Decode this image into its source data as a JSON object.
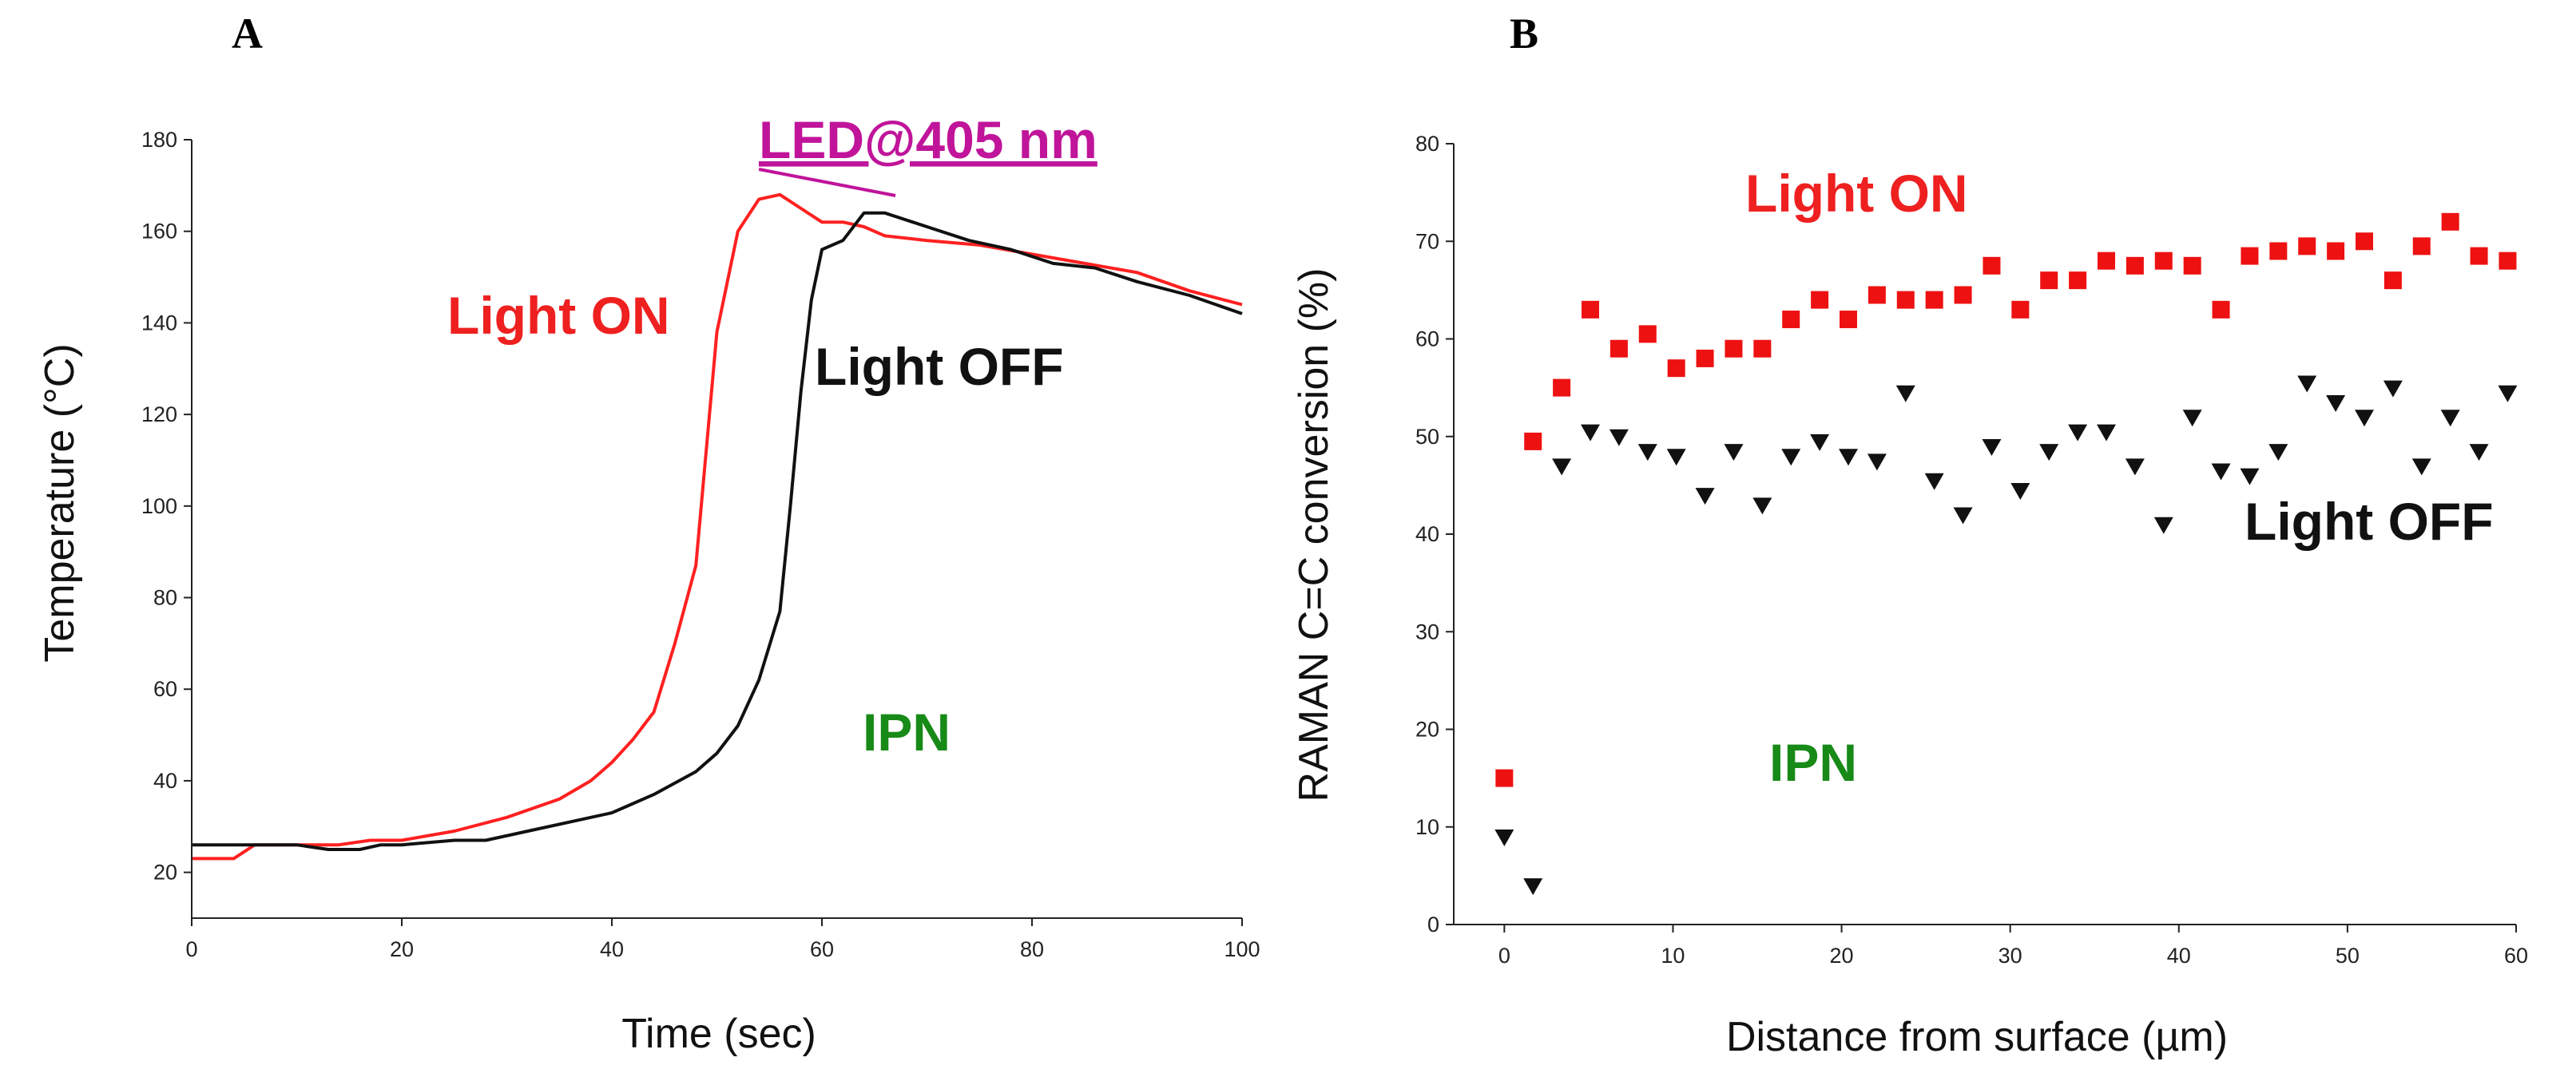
{
  "chart_data": [
    {
      "panel": "A",
      "type": "line",
      "xlabel": "Time (sec)",
      "ylabel": "Temperature (°C)",
      "xlim": [
        0,
        100
      ],
      "ylim": [
        10,
        180
      ],
      "xticks": [
        0,
        20,
        40,
        60,
        80,
        100
      ],
      "yticks": [
        20,
        40,
        60,
        80,
        100,
        120,
        140,
        160,
        180
      ],
      "grid": false,
      "series": [
        {
          "name": "Light ON",
          "color": "#ff2020",
          "x": [
            0,
            4,
            6,
            10,
            14,
            17,
            20,
            25,
            30,
            35,
            38,
            40,
            42,
            44,
            46,
            48,
            50,
            52,
            54,
            56,
            58,
            60,
            62,
            64,
            66,
            70,
            75,
            80,
            85,
            90,
            95,
            100
          ],
          "y": [
            23,
            23,
            26,
            26,
            26,
            27,
            27,
            29,
            32,
            36,
            40,
            44,
            49,
            55,
            70,
            87,
            138,
            160,
            167,
            168,
            165,
            162,
            162,
            161,
            159,
            158,
            157,
            155,
            153,
            151,
            147,
            144
          ]
        },
        {
          "name": "Light OFF",
          "color": "#111111",
          "x": [
            0,
            5,
            10,
            13,
            16,
            18,
            20,
            25,
            28,
            32,
            36,
            40,
            44,
            48,
            50,
            52,
            54,
            56,
            57,
            58,
            59,
            60,
            62,
            64,
            66,
            70,
            74,
            78,
            82,
            86,
            90,
            95,
            100
          ],
          "y": [
            26,
            26,
            26,
            25,
            25,
            26,
            26,
            27,
            27,
            29,
            31,
            33,
            37,
            42,
            46,
            52,
            62,
            77,
            100,
            125,
            145,
            156,
            158,
            164,
            164,
            161,
            158,
            156,
            153,
            152,
            149,
            146,
            142
          ]
        }
      ],
      "annotations": [
        "Light ON",
        "Light OFF",
        "LED@405 nm",
        "IPN"
      ],
      "led_bar_x": [
        54,
        67
      ]
    },
    {
      "panel": "B",
      "type": "scatter",
      "xlabel": "Distance from surface (µm)",
      "ylabel": "RAMAN C=C conversion (%)",
      "xlim": [
        -3,
        60
      ],
      "ylim": [
        0,
        80
      ],
      "xticks": [
        0,
        10,
        20,
        30,
        40,
        50,
        60
      ],
      "yticks": [
        0,
        10,
        20,
        30,
        40,
        50,
        60,
        70,
        80
      ],
      "grid": false,
      "series": [
        {
          "name": "Light ON",
          "color": "#ee1111",
          "marker": "square",
          "x": [
            0,
            1.7,
            3.4,
            5.1,
            6.8,
            8.5,
            10.2,
            11.9,
            13.6,
            15.3,
            17,
            18.7,
            20.4,
            22.1,
            23.8,
            25.5,
            27.2,
            28.9,
            30.6,
            32.3,
            34,
            35.7,
            37.4,
            39.1,
            40.8,
            42.5,
            44.2,
            45.9,
            47.6,
            49.3,
            51,
            52.7,
            54.4,
            56.1,
            57.8,
            59.5
          ],
          "y": [
            15,
            49.5,
            55,
            63,
            59,
            60.5,
            57,
            58,
            59,
            59,
            62,
            64,
            62,
            64.5,
            64,
            64,
            64.5,
            67.5,
            63,
            66,
            66,
            68,
            67.5,
            68,
            67.5,
            63,
            68.5,
            69,
            69.5,
            69,
            70,
            66,
            69.5,
            72,
            68.5,
            68
          ]
        },
        {
          "name": "Light OFF",
          "color": "#111111",
          "marker": "triangle-down",
          "x": [
            0,
            1.7,
            3.4,
            5.1,
            6.8,
            8.5,
            10.2,
            11.9,
            13.6,
            15.3,
            17,
            18.7,
            20.4,
            22.1,
            23.8,
            25.5,
            27.2,
            28.9,
            30.6,
            32.3,
            34,
            35.7,
            37.4,
            39.1,
            40.8,
            42.5,
            44.2,
            45.9,
            47.6,
            49.3,
            51,
            52.7,
            54.4,
            56.1,
            57.8,
            59.5
          ],
          "y": [
            9,
            4,
            47,
            50.5,
            50,
            48.5,
            48,
            44,
            48.5,
            43,
            48,
            49.5,
            48,
            47.5,
            54.5,
            45.5,
            42,
            49,
            44.5,
            48.5,
            50.5,
            50.5,
            47,
            41,
            52,
            46.5,
            46,
            48.5,
            55.5,
            53.5,
            52,
            55,
            47,
            52,
            48.5,
            54.5
          ]
        }
      ],
      "annotations": [
        "Light ON",
        "Light OFF",
        "IPN"
      ]
    }
  ],
  "colors": {
    "light_on_label": "#ee2020",
    "light_off_label": "#111111",
    "led_label": "#c0149a",
    "ipn_label": "#178a17"
  }
}
